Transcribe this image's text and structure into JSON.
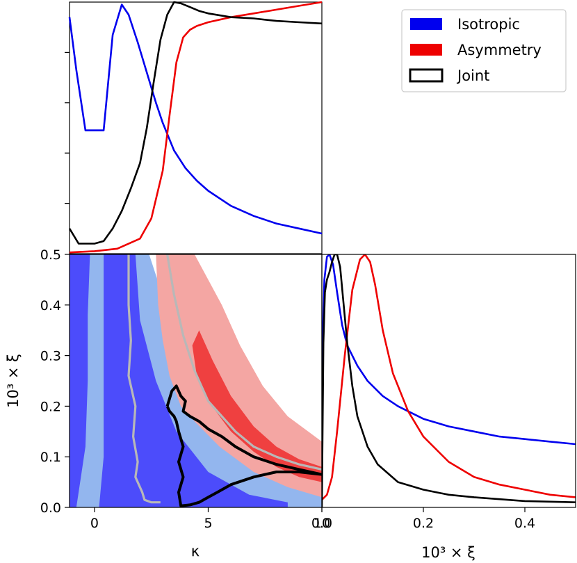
{
  "chart_data": [
    {
      "panel": "top-left",
      "type": "line",
      "xlim": [
        -1.1,
        10.0
      ],
      "ylim": [
        0,
        1
      ],
      "series": [
        {
          "name": "Isotropic",
          "color": "#0000ee",
          "x": [
            -1.1,
            -0.8,
            -0.4,
            0.0,
            0.4,
            0.8,
            1.2,
            1.5,
            1.9,
            2.3,
            2.7,
            3.0,
            3.5,
            4.0,
            4.5,
            5.0,
            6.0,
            7.0,
            8.0,
            9.0,
            10.0
          ],
          "y": [
            0.94,
            0.73,
            0.49,
            0.49,
            0.49,
            0.87,
            0.99,
            0.95,
            0.84,
            0.72,
            0.6,
            0.52,
            0.41,
            0.34,
            0.29,
            0.25,
            0.19,
            0.15,
            0.12,
            0.1,
            0.08
          ]
        },
        {
          "name": "Asymmetry",
          "color": "#ee0000",
          "x": [
            -1.1,
            0.0,
            1.0,
            2.0,
            2.5,
            3.0,
            3.3,
            3.6,
            3.9,
            4.2,
            4.5,
            5.0,
            6.0,
            7.0,
            8.0,
            9.0,
            10.0
          ],
          "y": [
            0.005,
            0.01,
            0.02,
            0.06,
            0.14,
            0.33,
            0.55,
            0.76,
            0.86,
            0.89,
            0.905,
            0.92,
            0.94,
            0.955,
            0.97,
            0.985,
            1.0
          ]
        },
        {
          "name": "Joint",
          "color": "#000000",
          "x": [
            -1.1,
            -0.7,
            0.0,
            0.4,
            0.8,
            1.2,
            1.6,
            2.0,
            2.3,
            2.6,
            2.9,
            3.2,
            3.5,
            3.8,
            4.2,
            4.6,
            5.0,
            6.0,
            7.0,
            8.0,
            9.0,
            10.0
          ],
          "y": [
            0.1,
            0.04,
            0.04,
            0.05,
            0.1,
            0.17,
            0.26,
            0.36,
            0.5,
            0.68,
            0.85,
            0.95,
            1.0,
            0.995,
            0.98,
            0.965,
            0.955,
            0.94,
            0.935,
            0.925,
            0.92,
            0.915
          ]
        }
      ]
    },
    {
      "panel": "bottom-left",
      "type": "contour",
      "xlabel": "κ",
      "ylabel": "10³ × ξ",
      "xlim": [
        -1.1,
        10.0
      ],
      "ylim": [
        0.0,
        0.5
      ],
      "xticks": [
        0,
        5,
        10
      ],
      "yticks": [
        0.0,
        0.1,
        0.2,
        0.3,
        0.4,
        0.5
      ],
      "regions": [
        {
          "name": "Isotropic 95%",
          "color": "#93b6ee",
          "polygon": [
            [
              -1.1,
              0.5
            ],
            [
              2.4,
              0.5
            ],
            [
              3.5,
              0.35
            ],
            [
              5.0,
              0.21
            ],
            [
              6.5,
              0.12
            ],
            [
              8.0,
              0.06
            ],
            [
              10.0,
              0.02
            ],
            [
              10.0,
              0.0
            ],
            [
              -1.1,
              0.0
            ]
          ]
        },
        {
          "name": "Isotropic 68% left",
          "color": "#4c4cfb",
          "polygon": [
            [
              -1.1,
              0.5
            ],
            [
              -0.2,
              0.5
            ],
            [
              -0.3,
              0.38
            ],
            [
              -0.3,
              0.25
            ],
            [
              -0.4,
              0.12
            ],
            [
              -0.6,
              0.06
            ],
            [
              -0.8,
              0.0
            ],
            [
              -1.1,
              0.0
            ]
          ]
        },
        {
          "name": "Isotropic 68% right",
          "color": "#4c4cfb",
          "polygon": [
            [
              0.4,
              0.5
            ],
            [
              1.8,
              0.5
            ],
            [
              2.0,
              0.37
            ],
            [
              2.7,
              0.25
            ],
            [
              3.6,
              0.15
            ],
            [
              5.0,
              0.07
            ],
            [
              6.8,
              0.025
            ],
            [
              8.5,
              0.01
            ],
            [
              8.5,
              0.0
            ],
            [
              0.2,
              0.0
            ],
            [
              0.4,
              0.1
            ],
            [
              0.4,
              0.3
            ]
          ]
        },
        {
          "name": "Asymmetry 95%",
          "color": "#f4a6a3",
          "polygon": [
            [
              2.7,
              0.5
            ],
            [
              4.4,
              0.5
            ],
            [
              5.6,
              0.4
            ],
            [
              6.4,
              0.32
            ],
            [
              7.4,
              0.24
            ],
            [
              8.5,
              0.18
            ],
            [
              10.0,
              0.13
            ],
            [
              10.0,
              0.02
            ],
            [
              8.5,
              0.04
            ],
            [
              7.0,
              0.07
            ],
            [
              5.5,
              0.12
            ],
            [
              4.4,
              0.17
            ],
            [
              3.8,
              0.2
            ],
            [
              3.3,
              0.26
            ],
            [
              3.0,
              0.33
            ],
            [
              2.8,
              0.4
            ]
          ]
        },
        {
          "name": "Asymmetry 68%",
          "color": "#ef4040",
          "polygon": [
            [
              4.6,
              0.35
            ],
            [
              5.2,
              0.29
            ],
            [
              6.0,
              0.22
            ],
            [
              7.0,
              0.16
            ],
            [
              8.0,
              0.12
            ],
            [
              9.0,
              0.095
            ],
            [
              10.0,
              0.08
            ],
            [
              10.0,
              0.05
            ],
            [
              9.0,
              0.06
            ],
            [
              8.0,
              0.08
            ],
            [
              7.0,
              0.11
            ],
            [
              6.0,
              0.15
            ],
            [
              5.0,
              0.21
            ],
            [
              4.5,
              0.26
            ],
            [
              4.3,
              0.32
            ]
          ]
        }
      ],
      "lines": [
        {
          "name": "Isotropic contour",
          "color": "#b8b8b8",
          "x": [
            1.5,
            1.5,
            1.6,
            1.5,
            1.8,
            1.7,
            1.9,
            1.8,
            2.1,
            2.2,
            2.5,
            2.9
          ],
          "y": [
            0.5,
            0.4,
            0.33,
            0.26,
            0.2,
            0.14,
            0.09,
            0.06,
            0.03,
            0.015,
            0.01,
            0.01
          ]
        },
        {
          "name": "Asymmetry contour",
          "color": "#b8b8b8",
          "x": [
            3.2,
            3.5,
            3.9,
            4.4,
            5.0,
            5.6,
            6.2,
            7.0,
            8.0,
            9.0,
            10.0
          ],
          "y": [
            0.5,
            0.42,
            0.34,
            0.27,
            0.21,
            0.18,
            0.15,
            0.12,
            0.1,
            0.085,
            0.075
          ]
        },
        {
          "name": "Joint contour",
          "color": "#000000",
          "x": [
            3.2,
            3.4,
            3.6,
            3.8,
            4.0,
            3.9,
            4.2,
            4.6,
            5.0,
            5.6,
            6.2,
            7.0,
            8.0,
            9.0,
            10.0,
            9.0,
            8.0,
            7.0,
            6.0,
            5.4,
            5.0,
            4.6,
            4.2,
            3.8,
            3.7,
            3.9,
            3.7,
            3.9,
            3.7,
            3.6,
            3.5,
            3.3,
            3.2
          ],
          "y": [
            0.2,
            0.23,
            0.24,
            0.22,
            0.21,
            0.19,
            0.18,
            0.17,
            0.155,
            0.14,
            0.12,
            0.1,
            0.085,
            0.075,
            0.065,
            0.07,
            0.07,
            0.06,
            0.045,
            0.03,
            0.02,
            0.01,
            0.005,
            0.003,
            0.03,
            0.06,
            0.09,
            0.12,
            0.15,
            0.17,
            0.18,
            0.19,
            0.2
          ]
        }
      ]
    },
    {
      "panel": "bottom-right",
      "type": "line",
      "xlabel": "10³ × ξ",
      "xlim": [
        0.0,
        0.5
      ],
      "ylim": [
        0,
        1
      ],
      "xticks": [
        0.0,
        0.2,
        0.4
      ],
      "series": [
        {
          "name": "Isotropic",
          "color": "#0000ee",
          "x": [
            0.0,
            0.005,
            0.01,
            0.015,
            0.022,
            0.03,
            0.04,
            0.05,
            0.07,
            0.09,
            0.12,
            0.15,
            0.2,
            0.25,
            0.3,
            0.35,
            0.4,
            0.45,
            0.5
          ],
          "y": [
            0.55,
            0.9,
            0.99,
            1.0,
            0.96,
            0.85,
            0.72,
            0.64,
            0.56,
            0.5,
            0.44,
            0.4,
            0.35,
            0.32,
            0.3,
            0.28,
            0.27,
            0.26,
            0.25
          ]
        },
        {
          "name": "Asymmetry",
          "color": "#ee0000",
          "x": [
            0.0,
            0.01,
            0.02,
            0.03,
            0.045,
            0.06,
            0.075,
            0.085,
            0.095,
            0.105,
            0.12,
            0.14,
            0.17,
            0.2,
            0.25,
            0.3,
            0.35,
            0.4,
            0.45,
            0.5
          ],
          "y": [
            0.03,
            0.05,
            0.12,
            0.3,
            0.6,
            0.86,
            0.98,
            1.0,
            0.97,
            0.88,
            0.7,
            0.53,
            0.38,
            0.28,
            0.18,
            0.12,
            0.09,
            0.07,
            0.05,
            0.04
          ]
        },
        {
          "name": "Joint",
          "color": "#000000",
          "x": [
            0.0,
            0.003,
            0.006,
            0.01,
            0.015,
            0.02,
            0.025,
            0.03,
            0.036,
            0.042,
            0.05,
            0.06,
            0.07,
            0.09,
            0.11,
            0.15,
            0.2,
            0.25,
            0.3,
            0.4,
            0.5
          ],
          "y": [
            0.0,
            0.65,
            0.85,
            0.9,
            0.93,
            0.97,
            1.0,
            1.0,
            0.95,
            0.82,
            0.65,
            0.48,
            0.36,
            0.24,
            0.17,
            0.1,
            0.07,
            0.05,
            0.04,
            0.025,
            0.02
          ]
        }
      ]
    }
  ],
  "legend": {
    "placement": "top-right",
    "entries": [
      {
        "label": "Isotropic",
        "color": "#0000ee",
        "style": "filled"
      },
      {
        "label": "Asymmetry",
        "color": "#ee0000",
        "style": "filled"
      },
      {
        "label": "Joint",
        "color": "#000000",
        "style": "outline"
      }
    ]
  }
}
